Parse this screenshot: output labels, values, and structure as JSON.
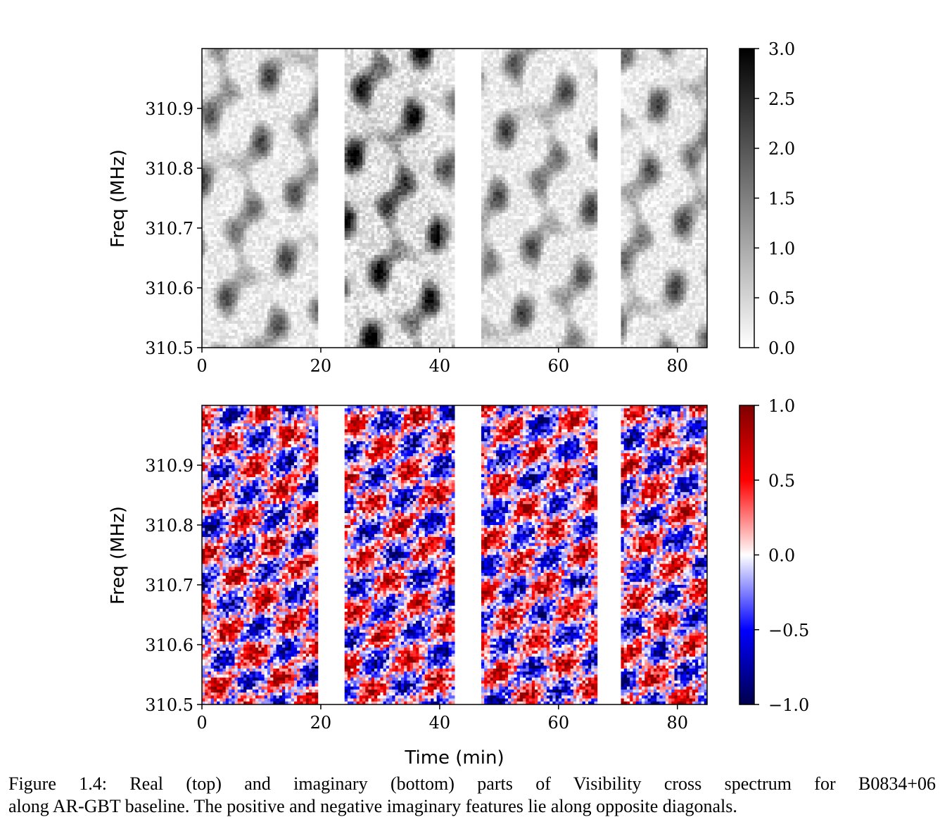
{
  "chart_data": [
    {
      "type": "heatmap",
      "panel": "top",
      "title": "",
      "xlabel": "",
      "ylabel": "Freq (MHz)",
      "xlim": [
        0,
        85
      ],
      "ylim": [
        310.5,
        311.0
      ],
      "xticks": [
        0,
        20,
        40,
        60,
        80
      ],
      "xtick_labels": [
        "0",
        "20",
        "40",
        "60",
        "80"
      ],
      "yticks": [
        310.5,
        310.6,
        310.7,
        310.8,
        310.9
      ],
      "ytick_labels": [
        "310.5",
        "310.6",
        "310.7",
        "310.8",
        "310.9"
      ],
      "colorbar": {
        "range": [
          0.0,
          3.0
        ],
        "ticks": [
          0.0,
          0.5,
          1.0,
          1.5,
          2.0,
          2.5,
          3.0
        ],
        "tick_labels": [
          "0.0",
          "0.5",
          "1.0",
          "1.5",
          "2.0",
          "2.5",
          "3.0"
        ],
        "colors": [
          "#ffffff",
          "#000000"
        ]
      },
      "data_gaps_min": [
        [
          19.5,
          24.2
        ],
        [
          42.6,
          46.8
        ],
        [
          66.4,
          70.6
        ]
      ],
      "grid": false
    },
    {
      "type": "heatmap",
      "panel": "bottom",
      "title": "",
      "xlabel": "Time (min)",
      "ylabel": "Freq (MHz)",
      "xlim": [
        0,
        85
      ],
      "ylim": [
        310.5,
        311.0
      ],
      "xticks": [
        0,
        20,
        40,
        60,
        80
      ],
      "xtick_labels": [
        "0",
        "20",
        "40",
        "60",
        "80"
      ],
      "yticks": [
        310.5,
        310.6,
        310.7,
        310.8,
        310.9
      ],
      "ytick_labels": [
        "310.5",
        "310.6",
        "310.7",
        "310.8",
        "310.9"
      ],
      "colorbar": {
        "range": [
          -1.0,
          1.0
        ],
        "ticks": [
          -1.0,
          -0.5,
          0.0,
          0.5,
          1.0
        ],
        "tick_labels": [
          "−1.0",
          "−0.5",
          "0.0",
          "0.5",
          "1.0"
        ],
        "colors": [
          "#00004c",
          "#0000ff",
          "#ffffff",
          "#ff0000",
          "#7f0000"
        ]
      },
      "data_gaps_min": [
        [
          19.5,
          24.2
        ],
        [
          42.6,
          46.8
        ],
        [
          66.4,
          70.6
        ]
      ],
      "grid": false
    }
  ],
  "caption": {
    "line1": "Figure 1.4: Real (top) and imaginary (bottom) parts of Visibility cross spectrum for B0834+06",
    "line2": "along AR-GBT baseline. The positive and negative imaginary features lie along opposite diagonals."
  }
}
